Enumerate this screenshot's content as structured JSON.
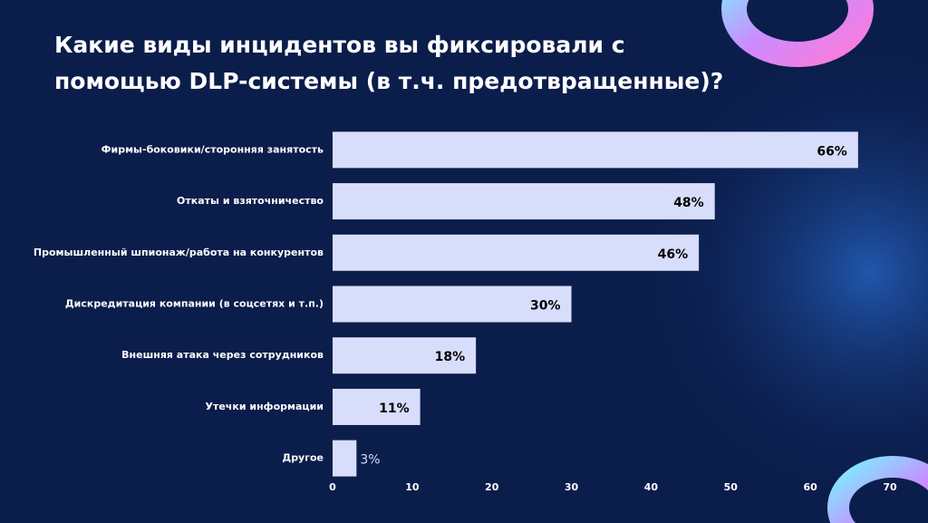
{
  "chart_data": {
    "type": "bar",
    "orientation": "horizontal",
    "title": "Какие виды инцидентов вы фиксировали с помощью DLP-системы (в т.ч. предотвращенные)?",
    "categories": [
      "Фирмы-боковики/сторонняя занятость",
      "Откаты и взяточничество",
      "Промышленный шпионаж/работа на конкурентов",
      "Дискредитация компании (в соцсетях и т.п.)",
      "Внешняя атака через сотрудников",
      "Утечки информации",
      "Другое"
    ],
    "values": [
      66,
      48,
      46,
      30,
      18,
      11,
      3
    ],
    "value_labels": [
      "66%",
      "48%",
      "46%",
      "30%",
      "18%",
      "11%",
      "3%"
    ],
    "color": "#d8ddfb",
    "xlim": [
      0,
      70
    ],
    "xticks": [
      0,
      10,
      20,
      30,
      40,
      50,
      60,
      70
    ],
    "grid": false
  }
}
